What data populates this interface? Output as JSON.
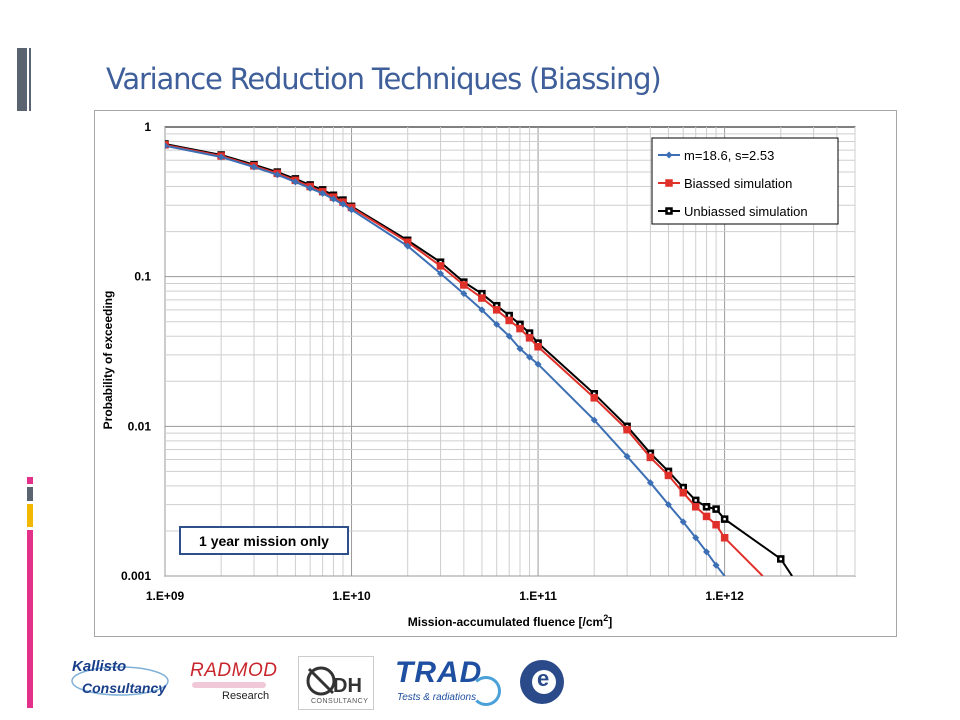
{
  "slide": {
    "title": "Variance Reduction Techniques (Biassing)"
  },
  "colors": {
    "title": "#3f5f9a",
    "series_blue": "#3d6fb5",
    "series_red": "#e0302a",
    "series_black": "#000000",
    "accent_magenta": "#e3308a",
    "accent_gray": "#5a6470",
    "accent_yellow": "#f2b800"
  },
  "chart_data": {
    "type": "line",
    "x_scale": "log",
    "y_scale": "log",
    "xlim": [
      1000000000.0,
      5000000000000.0
    ],
    "ylim": [
      0.001,
      1
    ],
    "xlabel": "Mission-accumulated  fluence [/cm",
    "xlabel_sup": "2",
    "xlabel_end": "]",
    "ylabel": "Probability  of exceeding",
    "x_ticks": [
      {
        "value": 1000000000.0,
        "label": "1.E+09"
      },
      {
        "value": 10000000000.0,
        "label": "1.E+10"
      },
      {
        "value": 100000000000.0,
        "label": "1.E+11"
      },
      {
        "value": 1000000000000.0,
        "label": "1.E+12"
      }
    ],
    "y_ticks": [
      {
        "value": 1,
        "label": "1"
      },
      {
        "value": 0.1,
        "label": "0.1"
      },
      {
        "value": 0.01,
        "label": "0.01"
      },
      {
        "value": 0.001,
        "label": "0.001"
      }
    ],
    "grid": true,
    "legend_position": "top-right",
    "annotation": "1 year mission only",
    "series": [
      {
        "name": "m=18.6, s=2.53",
        "color": "#3d6fb5",
        "marker": "diamond",
        "x": [
          1000000000.0,
          2000000000.0,
          3000000000.0,
          4000000000.0,
          5000000000.0,
          6000000000.0,
          7000000000.0,
          8000000000.0,
          9000000000.0,
          10000000000.0,
          20000000000.0,
          30000000000.0,
          40000000000.0,
          50000000000.0,
          60000000000.0,
          70000000000.0,
          80000000000.0,
          90000000000.0,
          100000000000.0,
          200000000000.0,
          300000000000.0,
          400000000000.0,
          500000000000.0,
          600000000000.0,
          700000000000.0,
          800000000000.0,
          900000000000.0,
          1000000000000.0
        ],
        "y": [
          0.75,
          0.63,
          0.54,
          0.48,
          0.43,
          0.39,
          0.36,
          0.33,
          0.305,
          0.28,
          0.16,
          0.105,
          0.077,
          0.06,
          0.048,
          0.04,
          0.033,
          0.029,
          0.026,
          0.011,
          0.0063,
          0.0042,
          0.003,
          0.0023,
          0.0018,
          0.00145,
          0.00118,
          0.001
        ]
      },
      {
        "name": "Biassed simulation",
        "color": "#e0302a",
        "marker": "square",
        "x": [
          1000000000.0,
          2000000000.0,
          3000000000.0,
          4000000000.0,
          5000000000.0,
          6000000000.0,
          7000000000.0,
          8000000000.0,
          9000000000.0,
          10000000000.0,
          20000000000.0,
          30000000000.0,
          40000000000.0,
          50000000000.0,
          60000000000.0,
          70000000000.0,
          80000000000.0,
          90000000000.0,
          100000000000.0,
          200000000000.0,
          300000000000.0,
          400000000000.0,
          500000000000.0,
          600000000000.0,
          700000000000.0,
          800000000000.0,
          900000000000.0,
          1000000000000.0,
          1600000000000.0
        ],
        "y": [
          0.76,
          0.64,
          0.55,
          0.49,
          0.44,
          0.4,
          0.37,
          0.34,
          0.315,
          0.29,
          0.17,
          0.118,
          0.088,
          0.072,
          0.06,
          0.051,
          0.045,
          0.039,
          0.034,
          0.0155,
          0.0095,
          0.0062,
          0.0047,
          0.0036,
          0.0029,
          0.0025,
          0.0022,
          0.0018,
          0.001
        ]
      },
      {
        "name": "Unbiassed simulation",
        "color": "#000000",
        "marker": "square",
        "x": [
          1000000000.0,
          2000000000.0,
          3000000000.0,
          4000000000.0,
          5000000000.0,
          6000000000.0,
          7000000000.0,
          8000000000.0,
          9000000000.0,
          10000000000.0,
          20000000000.0,
          30000000000.0,
          40000000000.0,
          50000000000.0,
          60000000000.0,
          70000000000.0,
          80000000000.0,
          90000000000.0,
          100000000000.0,
          200000000000.0,
          300000000000.0,
          400000000000.0,
          500000000000.0,
          600000000000.0,
          700000000000.0,
          800000000000.0,
          900000000000.0,
          1000000000000.0,
          2000000000000.0,
          2300000000000.0
        ],
        "y": [
          0.77,
          0.65,
          0.56,
          0.5,
          0.45,
          0.41,
          0.38,
          0.35,
          0.325,
          0.295,
          0.175,
          0.125,
          0.092,
          0.077,
          0.064,
          0.055,
          0.048,
          0.042,
          0.036,
          0.0165,
          0.01,
          0.0066,
          0.005,
          0.0039,
          0.0032,
          0.0029,
          0.0028,
          0.0024,
          0.0013,
          0.001
        ]
      }
    ]
  },
  "logos": {
    "kallisto_line1": "Kallisto",
    "kallisto_line2": "Consultancy",
    "radmod_word": "RADMOD",
    "radmod_sub": "Research",
    "dh_word": "DH",
    "dh_sub": "CONSULTANCY",
    "trad_word": "TRAD",
    "trad_sub": "Tests & radiations",
    "esa_letter": "e"
  }
}
